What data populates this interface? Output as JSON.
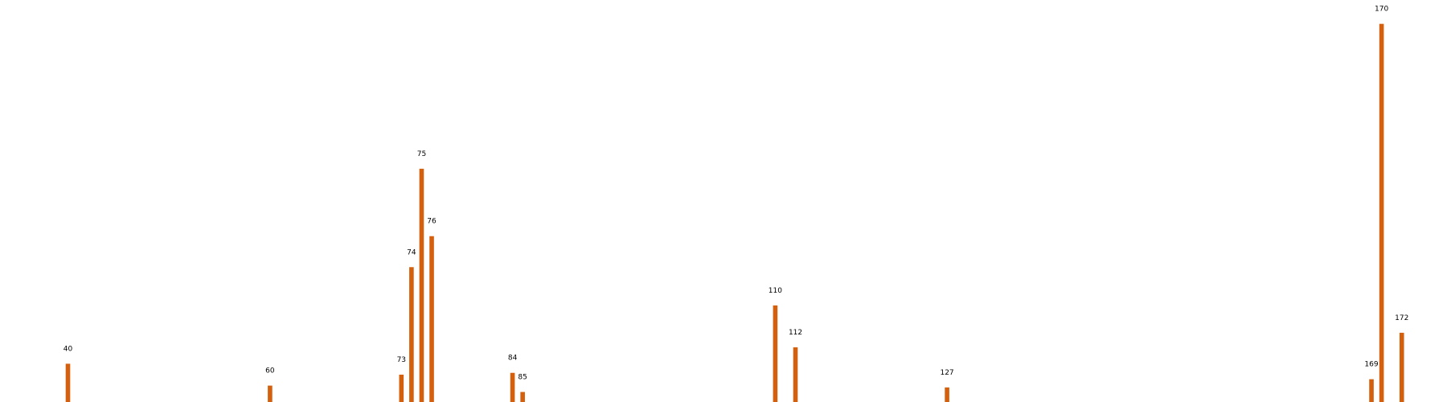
{
  "chart_data": {
    "type": "bar",
    "x": [
      40,
      60,
      73,
      74,
      75,
      76,
      84,
      85,
      110,
      112,
      127,
      169,
      170,
      172
    ],
    "values": [
      42,
      18,
      30,
      148,
      256,
      182,
      32,
      11,
      106,
      60,
      16,
      25,
      415,
      76
    ],
    "xlim": [
      33,
      178
    ],
    "ylim": [
      0,
      420
    ],
    "title": "",
    "xlabel": "",
    "ylabel": "",
    "grid": false,
    "bar_color": "#d45f0d",
    "label_color": "#000000"
  }
}
